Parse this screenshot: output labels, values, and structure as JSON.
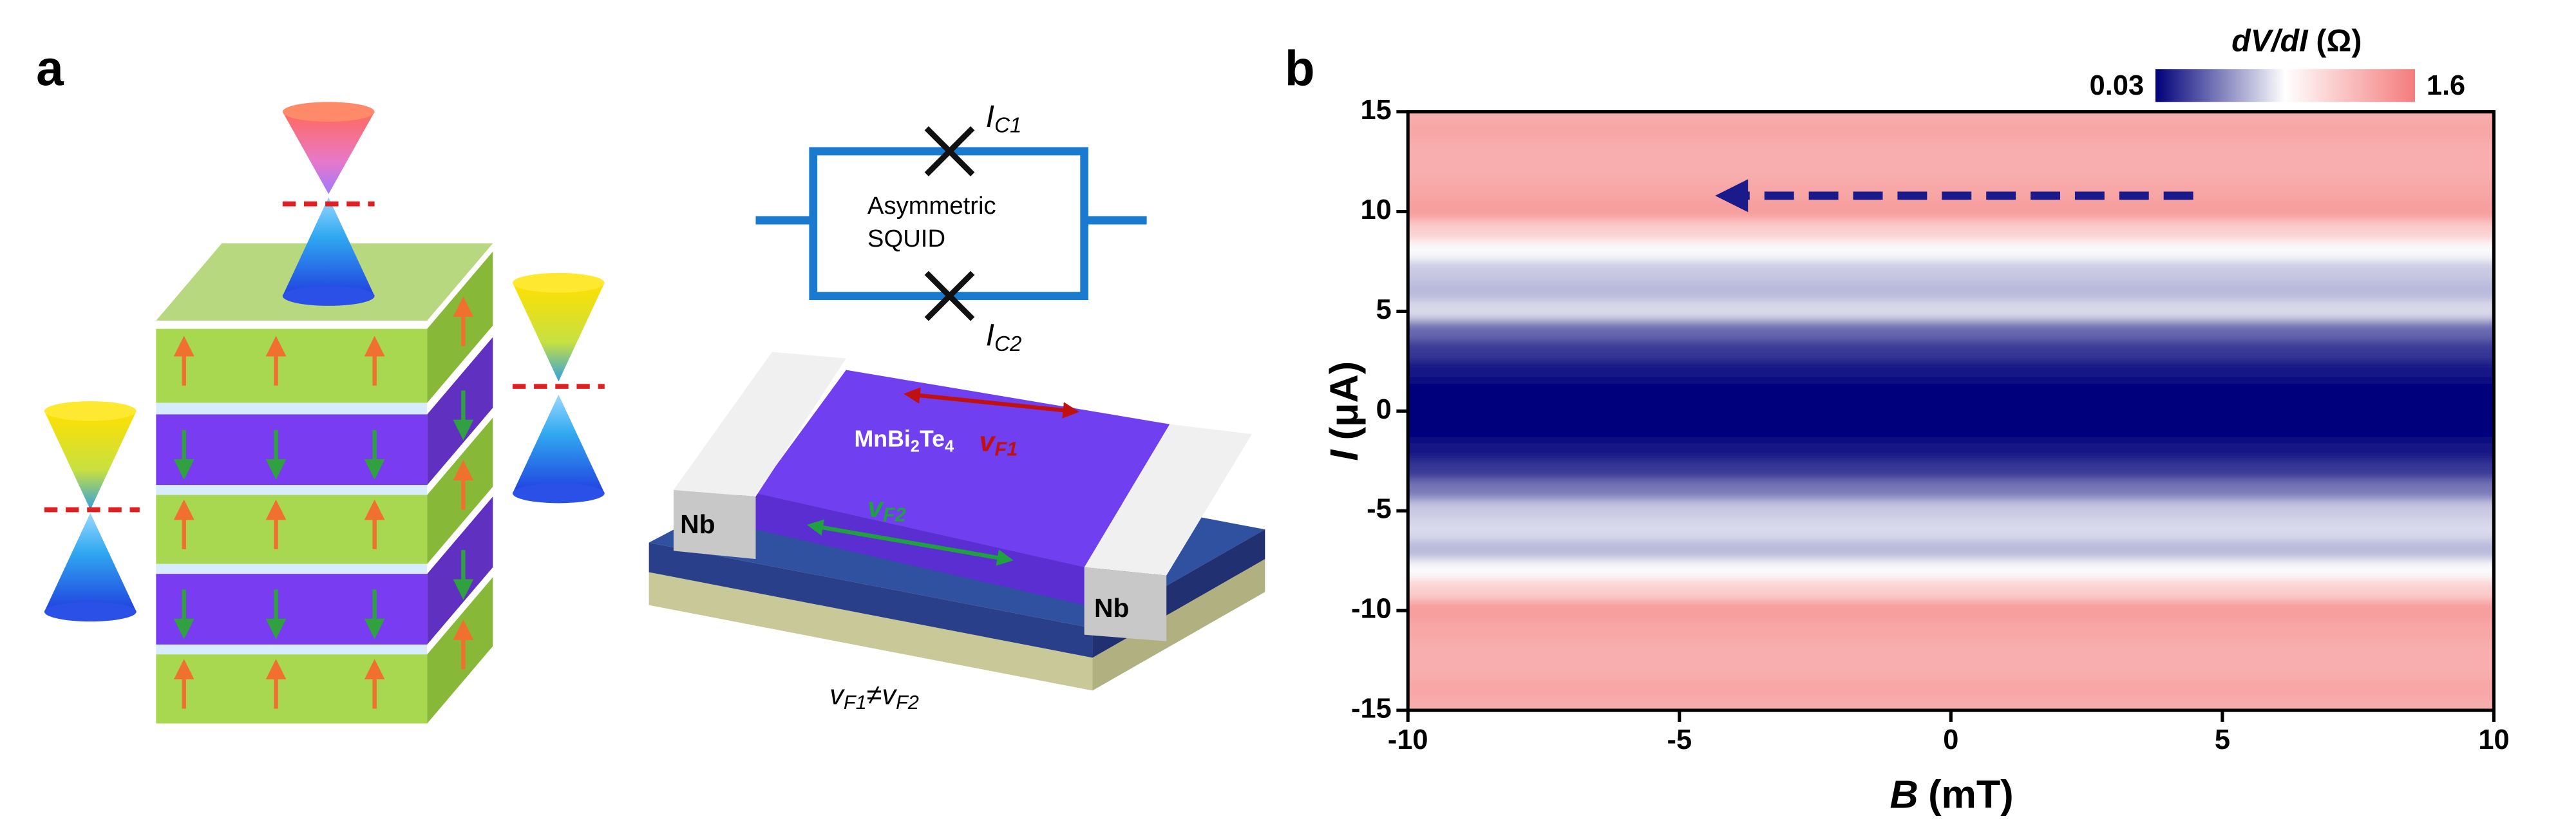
{
  "panel_a": {
    "label": "a",
    "squid": {
      "ic1": {
        "symbol": "I",
        "sub": "C1"
      },
      "ic2": {
        "symbol": "I",
        "sub": "C2"
      },
      "name_lines": [
        "Asymmetric",
        "SQUID"
      ]
    },
    "device": {
      "contacts": [
        "Nb",
        "Nb"
      ],
      "material": [
        "MnBi",
        "2",
        "Te",
        "4"
      ],
      "vf1": {
        "symbol": "v",
        "sub": "F1"
      },
      "vf2": {
        "symbol": "v",
        "sub": "F2"
      },
      "relation": {
        "left": {
          "symbol": "v",
          "sub": "F1"
        },
        "op": "≠",
        "right": {
          "symbol": "v",
          "sub": "F2"
        }
      }
    }
  },
  "chart_data": {
    "type": "heatmap",
    "panel_label": "b",
    "x_label": {
      "symbol": "B",
      "unit": "(mT)"
    },
    "y_label": {
      "symbol": "I",
      "unit": "(μA)"
    },
    "colorbar": {
      "title": {
        "symbol": "dV/dI",
        "unit": "(Ω)"
      },
      "zlim": [
        0.03,
        1.6
      ],
      "colors": [
        "#00007a",
        "#ffffff",
        "#f47c7c"
      ]
    },
    "xlim": [
      -10,
      10
    ],
    "xticks": [
      -10,
      -5,
      0,
      5,
      10
    ],
    "ylim": [
      -15,
      15
    ],
    "yticks": [
      15,
      10,
      5,
      0,
      -5,
      -10,
      -15
    ],
    "y": [
      15,
      14,
      13,
      12,
      11,
      10,
      9,
      8,
      7,
      6,
      5,
      4,
      3,
      2,
      1,
      0,
      -1,
      -2,
      -3,
      -4,
      -5,
      -6,
      -7,
      -8,
      -9,
      -10,
      -11,
      -12,
      -13,
      -14,
      -15
    ],
    "z": [
      1.3,
      1.35,
      1.3,
      1.3,
      1.35,
      1.4,
      1.1,
      0.8,
      0.65,
      0.6,
      0.7,
      0.35,
      0.2,
      0.1,
      0.05,
      0.04,
      0.05,
      0.1,
      0.2,
      0.4,
      0.65,
      0.7,
      0.6,
      0.8,
      1.1,
      1.4,
      1.35,
      1.3,
      1.3,
      1.35,
      1.3
    ]
  }
}
